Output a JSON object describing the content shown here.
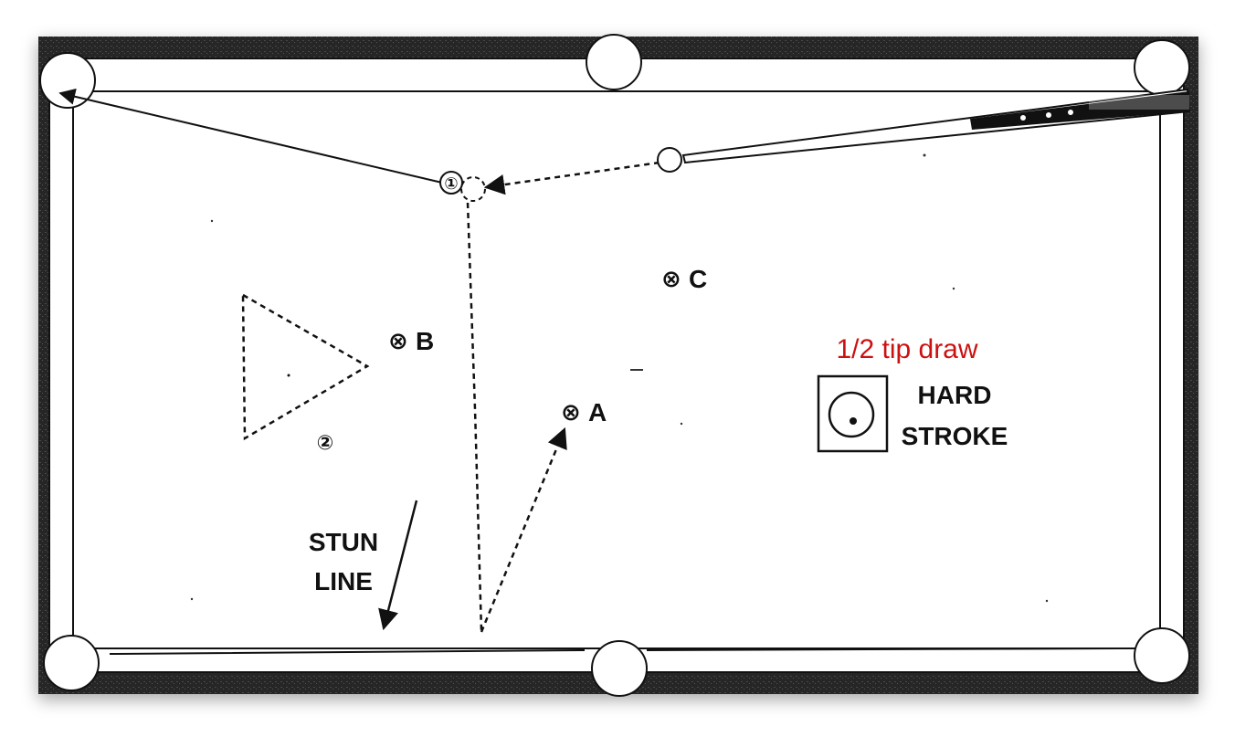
{
  "diagram": {
    "target_ball_label": "①",
    "second_ball_label": "②",
    "positions": [
      {
        "marker": "⊗",
        "letter": "A"
      },
      {
        "marker": "⊗",
        "letter": "B"
      },
      {
        "marker": "⊗",
        "letter": "C"
      }
    ],
    "stun_line": {
      "line1": "STUN",
      "line2": "LINE"
    },
    "tip_note": "1/2 tip draw",
    "stroke": {
      "line1": "HARD",
      "line2": "STROKE"
    }
  },
  "colors": {
    "rail": "#2b2b2b",
    "cloth": "#ffffff",
    "ink": "#111111",
    "note": "#cc1111"
  }
}
